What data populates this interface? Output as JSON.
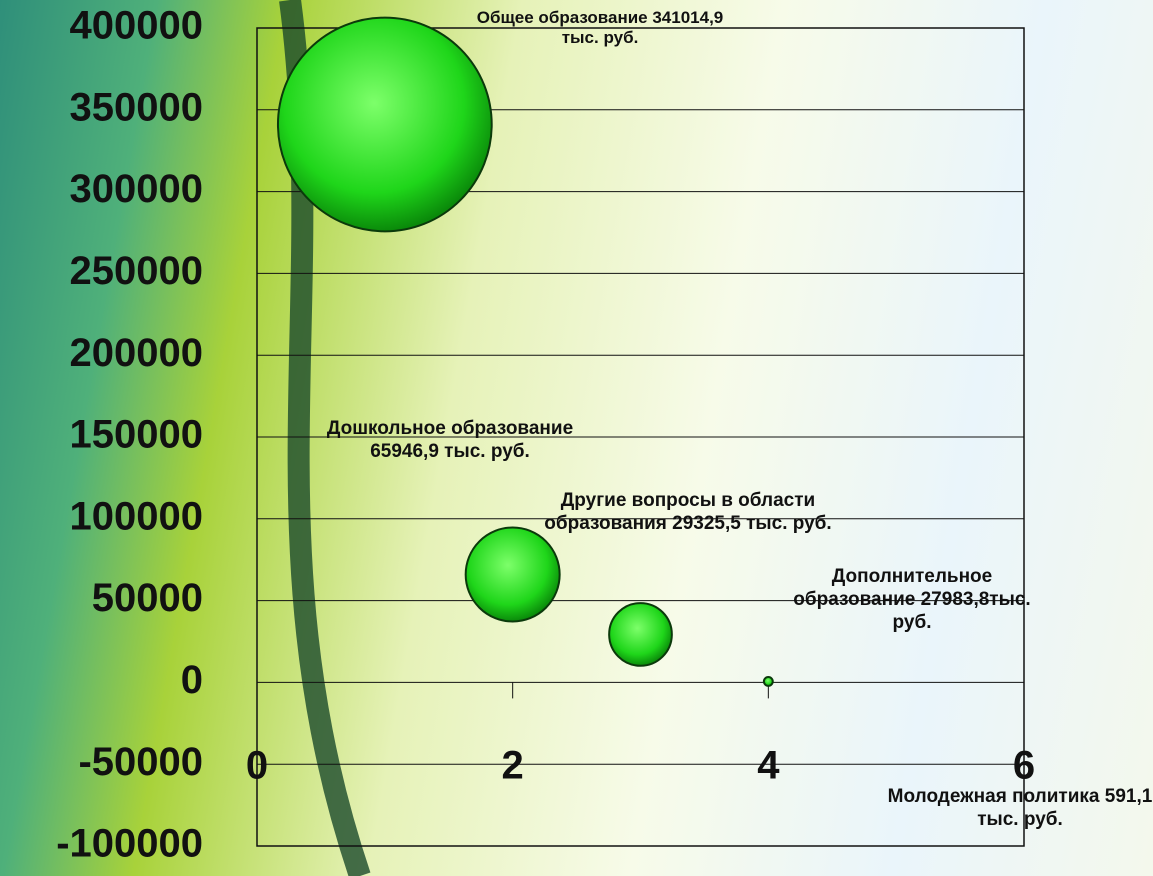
{
  "chart_data": {
    "type": "bubble",
    "x": [
      1,
      2,
      3,
      4
    ],
    "y": [
      341014.9,
      65946.9,
      29325.5,
      591.1
    ],
    "sizes": [
      341014.9,
      65946.9,
      29325.5,
      591.1
    ],
    "labels": [
      "Общее образование 341014,9 тыс. руб.",
      "Дошкольное образование 65946,9 тыс. руб.",
      "Другие вопросы в области образования 29325,5 тыс. руб.",
      "Молодежная политика 591,1 тыс. руб."
    ],
    "annotations": [
      "Дополнительное образование 27983,8тыс. руб."
    ],
    "color": "#22dd22",
    "xlim": [
      0,
      6
    ],
    "xticks": [
      0,
      2,
      4,
      6
    ],
    "ylim": [
      -100000,
      400000
    ],
    "yticks": [
      -100000,
      -50000,
      0,
      50000,
      100000,
      150000,
      200000,
      250000,
      300000,
      350000,
      400000
    ],
    "grid": true
  }
}
